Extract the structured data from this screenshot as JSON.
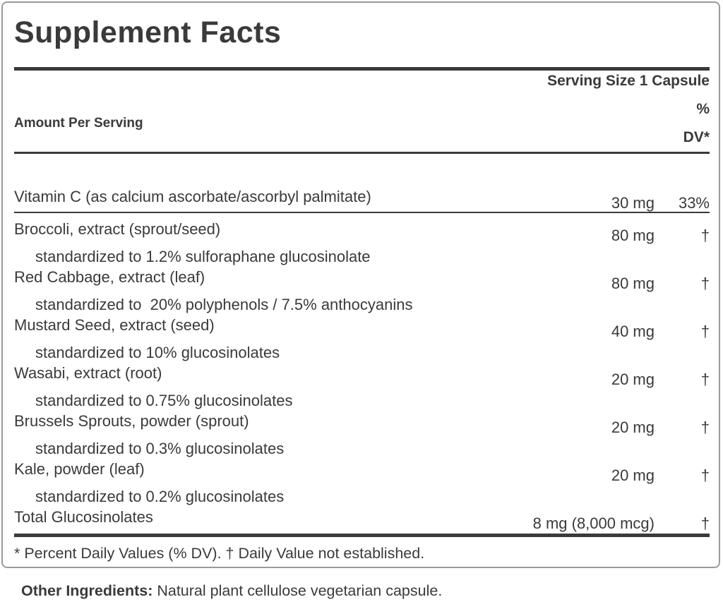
{
  "label": {
    "title": "Supplement Facts",
    "serving_size": "Serving Size 1 Capsule",
    "columns": {
      "amount_header": "Amount Per Serving",
      "dv_header": "%\nDV*"
    },
    "rows": [
      {
        "name": "Vitamin C (as calcium ascorbate/ascorbyl palmitate)",
        "amount": "30 mg",
        "dv": "33%",
        "detail": "",
        "separator_after": true
      },
      {
        "name": "Broccoli, extract (sprout/seed)",
        "amount": "80 mg",
        "dv": "†",
        "detail": "standardized to 1.2% sulforaphane glucosinolate",
        "separator_after": false
      },
      {
        "name": "Red Cabbage, extract (leaf)",
        "amount": "80 mg",
        "dv": "†",
        "detail": "standardized to  20% polyphenols / 7.5% anthocyanins",
        "separator_after": false
      },
      {
        "name": "Mustard Seed, extract (seed)",
        "amount": "40 mg",
        "dv": "†",
        "detail": "standardized to 10% glucosinolates",
        "separator_after": false
      },
      {
        "name": "Wasabi, extract (root)",
        "amount": "20 mg",
        "dv": "†",
        "detail": "standardized to 0.75% glucosinolates",
        "separator_after": false
      },
      {
        "name": "Brussels Sprouts, powder (sprout)",
        "amount": "20 mg",
        "dv": "†",
        "detail": "standardized to 0.3% glucosinolates",
        "separator_after": false
      },
      {
        "name": "Kale, powder (leaf)",
        "amount": "20 mg",
        "dv": "†",
        "detail": "standardized to 0.2% glucosinolates",
        "separator_after": false
      },
      {
        "name": "Total Glucosinolates",
        "amount": "8 mg (8,000 mcg)",
        "dv": "†",
        "detail": "",
        "separator_after": false
      }
    ],
    "footnote": "* Percent Daily Values (% DV). † Daily Value not established.",
    "other_ingredients": {
      "label": "Other Ingredients:",
      "text": " Natural plant cellulose vegetarian capsule."
    },
    "colors": {
      "text": "#3a3a3a",
      "rule": "#3a3a3a",
      "border": "#9a9a9a",
      "background": "#ffffff"
    }
  }
}
